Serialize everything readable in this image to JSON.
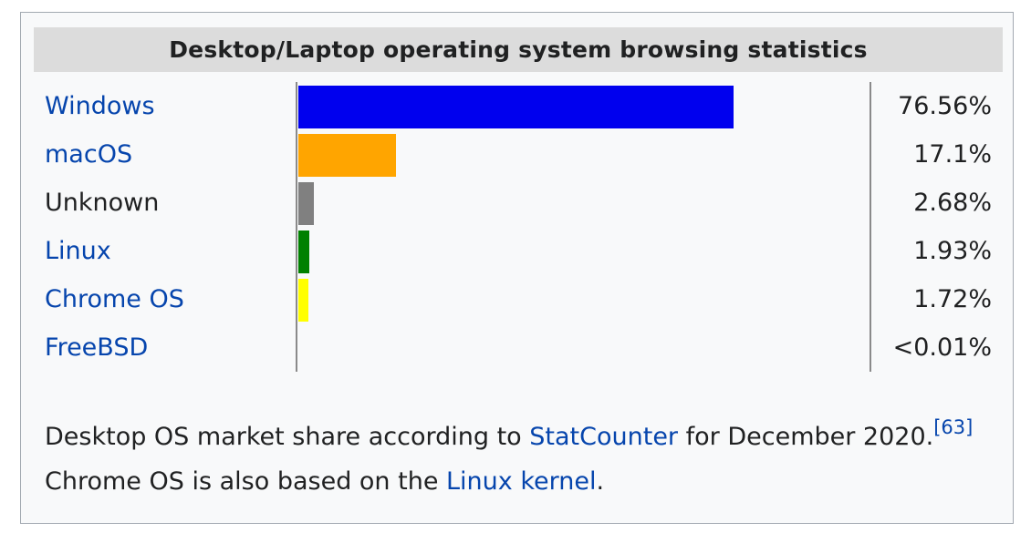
{
  "chart_data": {
    "type": "bar",
    "title": "Desktop/Laptop operating system browsing statistics",
    "categories": [
      "Windows",
      "macOS",
      "Unknown",
      "Linux",
      "Chrome OS",
      "FreeBSD"
    ],
    "values": [
      76.56,
      17.1,
      2.68,
      1.93,
      1.72,
      0.01
    ],
    "value_labels": [
      "76.56%",
      "17.1%",
      "2.68%",
      "1.93%",
      "1.72%",
      "<0.01%"
    ],
    "colors": [
      "#0000ee",
      "#ffa500",
      "#808080",
      "#008000",
      "#ffff00",
      "#ff0000"
    ],
    "linked": [
      true,
      true,
      false,
      true,
      true,
      true
    ],
    "xlim": [
      0,
      76.56
    ],
    "orientation": "horizontal"
  },
  "caption": {
    "text_1": "Desktop OS market share according to ",
    "link_1": "StatCounter",
    "text_2": " for December 2020.",
    "ref": "[63]",
    "text_3": " Chrome OS is also based on the ",
    "link_2": "Linux kernel",
    "text_4": "."
  }
}
